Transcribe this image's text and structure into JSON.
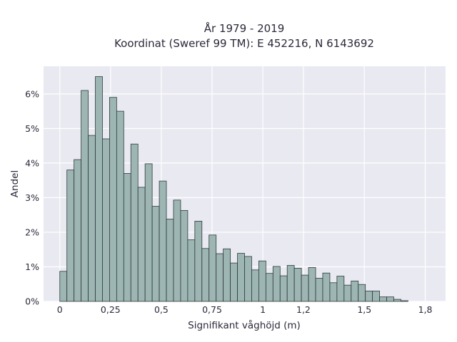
{
  "chart_data": {
    "type": "bar",
    "title": "År 1979 - 2019",
    "subtitle": "Koordinat (Sweref 99 TM): E 452216, N 6143692",
    "xlabel": "Signifikant våghöjd (m)",
    "ylabel": "Andel",
    "xlim": [
      -0.08,
      1.9
    ],
    "ylim": [
      0,
      0.068
    ],
    "bin_start": 0.0,
    "bin_width": 0.035,
    "x_ticks": [
      {
        "value": 0,
        "label": "0"
      },
      {
        "value": 0.25,
        "label": "0,25"
      },
      {
        "value": 0.5,
        "label": "0,5"
      },
      {
        "value": 0.75,
        "label": "0,75"
      },
      {
        "value": 1.0,
        "label": "1"
      },
      {
        "value": 1.2,
        "label": "1,2"
      },
      {
        "value": 1.5,
        "label": "1,5"
      },
      {
        "value": 1.8,
        "label": "1,8"
      }
    ],
    "y_ticks": [
      {
        "value": 0,
        "label": "0%"
      },
      {
        "value": 0.01,
        "label": "1%"
      },
      {
        "value": 0.02,
        "label": "2%"
      },
      {
        "value": 0.03,
        "label": "3%"
      },
      {
        "value": 0.04,
        "label": "4%"
      },
      {
        "value": 0.05,
        "label": "5%"
      },
      {
        "value": 0.06,
        "label": "6%"
      }
    ],
    "values": [
      0.0087,
      0.038,
      0.041,
      0.061,
      0.048,
      0.065,
      0.047,
      0.059,
      0.055,
      0.037,
      0.0455,
      0.033,
      0.0398,
      0.0275,
      0.0348,
      0.0238,
      0.0293,
      0.0263,
      0.0178,
      0.0232,
      0.0153,
      0.0192,
      0.0138,
      0.0152,
      0.0111,
      0.0139,
      0.013,
      0.0091,
      0.0117,
      0.0081,
      0.0101,
      0.0074,
      0.0104,
      0.0096,
      0.0076,
      0.0098,
      0.0067,
      0.0082,
      0.0054,
      0.0073,
      0.0047,
      0.0059,
      0.0049,
      0.003,
      0.003,
      0.0013,
      0.0013,
      0.0006,
      0.0002
    ],
    "colors": {
      "bar_fill": "#9db5b3",
      "bar_stroke": "#2e3b3a",
      "plot_bg": "#e9e9f2",
      "grid": "#ffffff"
    },
    "grid": true,
    "legend": "none"
  }
}
